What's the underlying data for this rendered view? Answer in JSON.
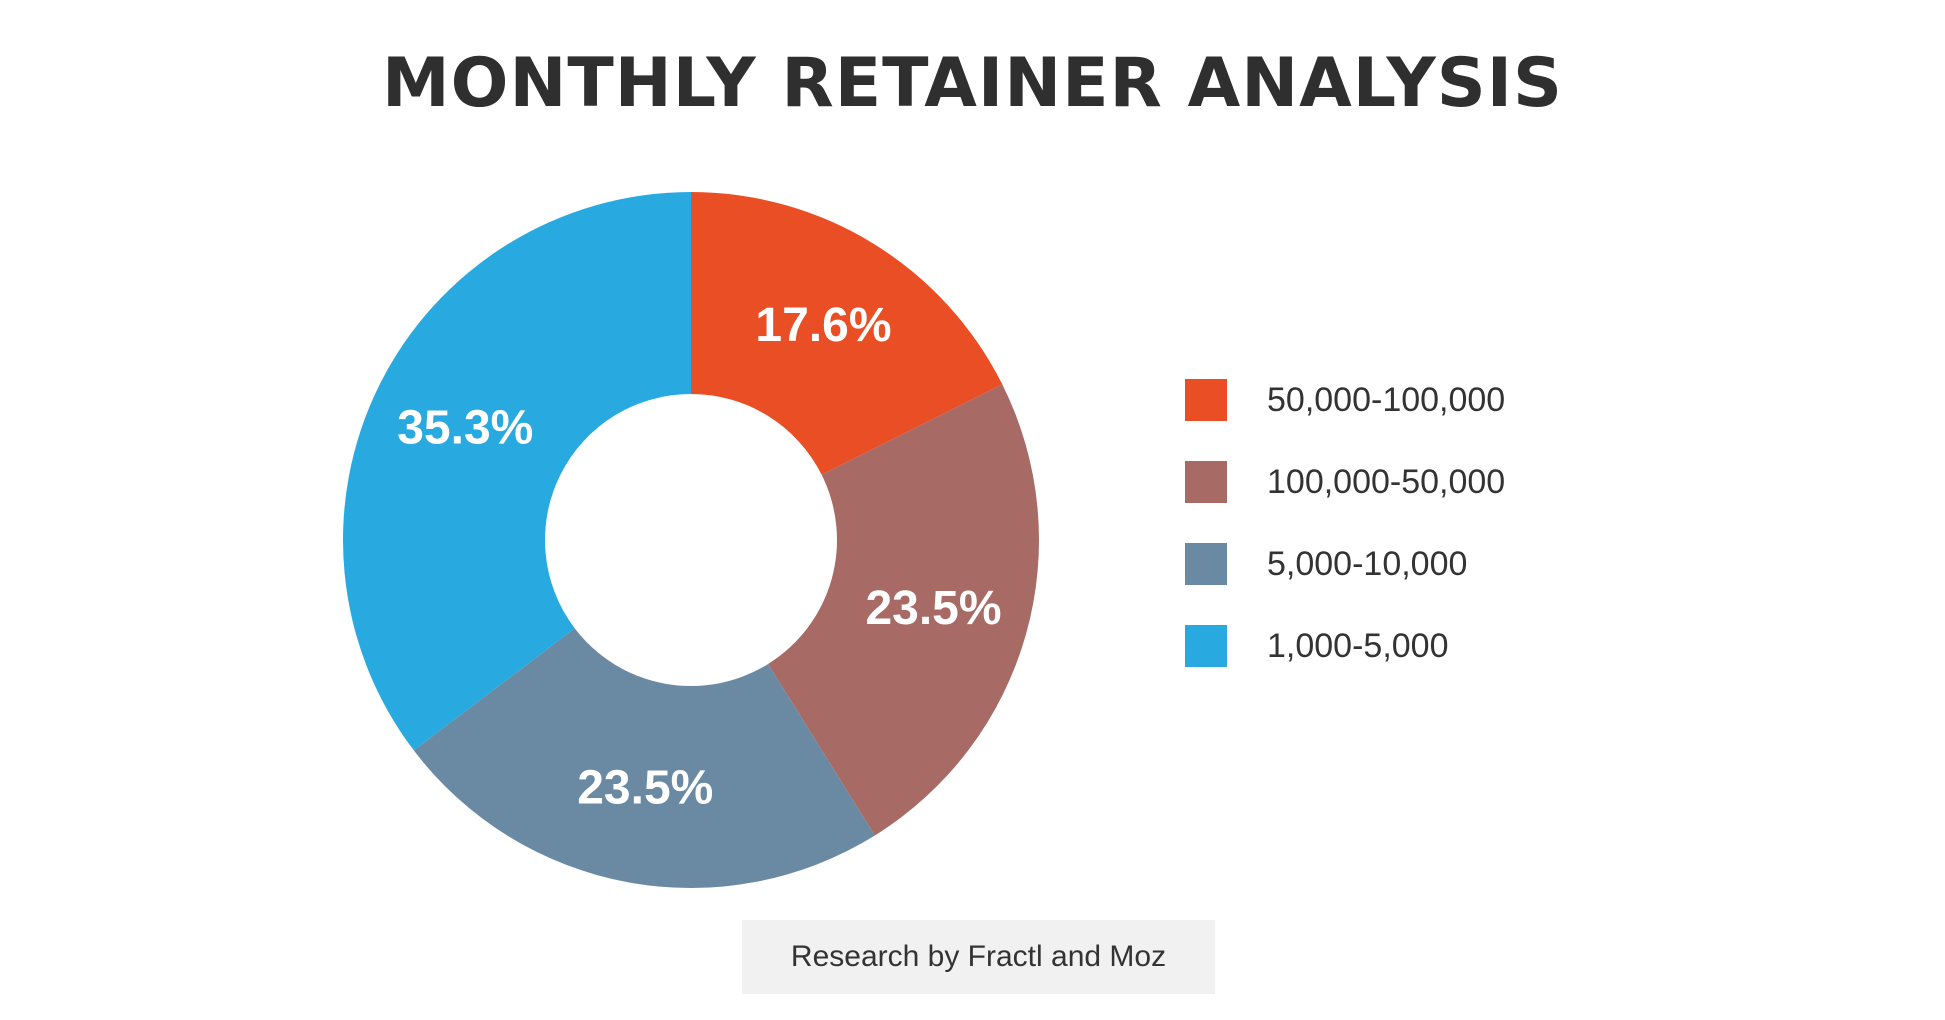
{
  "chart_data": {
    "type": "pie",
    "title": "MONTHLY RETAINER ANALYSIS",
    "categories": [
      "50,000-100,000",
      "100,000-50,000",
      "5,000-10,000",
      "1,000-5,000"
    ],
    "values": [
      17.6,
      23.5,
      23.5,
      35.3
    ],
    "data_labels": [
      "17.6%",
      "23.5%",
      "23.5%",
      "35.3%"
    ],
    "colors": [
      "#e94e25",
      "#a86a64",
      "#6a8aa3",
      "#28aae1"
    ],
    "donut": true,
    "legend_position": "right"
  },
  "source_note": "Research by Fractl and Moz"
}
